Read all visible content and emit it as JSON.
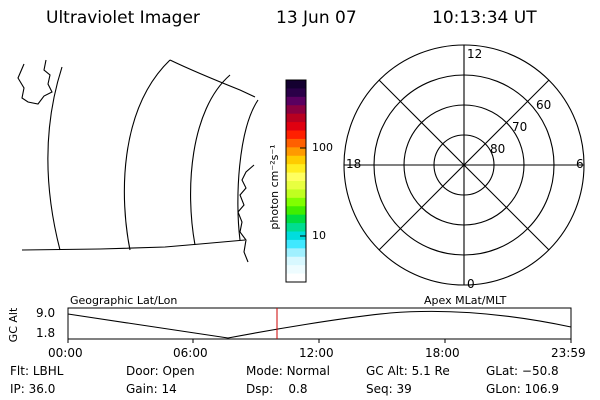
{
  "header": {
    "instrument": "Ultraviolet Imager",
    "date": "13 Jun 07",
    "time": "10:13:34 UT"
  },
  "colorbar": {
    "unit_label": "photon cm⁻²s⁻¹",
    "tick_100": "100",
    "tick_10": "10",
    "colors": [
      "#140030",
      "#2a0048",
      "#5a0060",
      "#8a0040",
      "#b80020",
      "#e00010",
      "#ff2000",
      "#ff6000",
      "#ff9a00",
      "#ffcc00",
      "#ffee20",
      "#ffff60",
      "#e8ff40",
      "#c0ff20",
      "#80ff00",
      "#40ee00",
      "#00dd40",
      "#00dd90",
      "#00dddd",
      "#40e8ff",
      "#a0f0ff",
      "#d8f8ff",
      "#eefcff",
      "#ffffff"
    ]
  },
  "polar": {
    "mlt_12": "12",
    "mlt_18": "18",
    "mlt_6": "6",
    "mlt_0": "0",
    "lat_60": "60",
    "lat_70": "70",
    "lat_80": "80"
  },
  "panel_labels": {
    "left": "Geographic Lat/Lon",
    "right": "Apex MLat/MLT"
  },
  "altitude_plot": {
    "ylabel": "GC Alt",
    "ymax": "9.0",
    "ymin": "1.8",
    "x_ticks": [
      "00:00",
      "06:00",
      "12:00",
      "18:00",
      "23:59"
    ],
    "marker_color": "#cc0000"
  },
  "status": {
    "row1": [
      {
        "key": "Flt:",
        "value": "LBHL"
      },
      {
        "key": "Door:",
        "value": "Open"
      },
      {
        "key": "Mode:",
        "value": "Normal"
      },
      {
        "key": "GC Alt:",
        "value": "5.1 Re"
      },
      {
        "key": "GLat:",
        "value": "−50.8"
      }
    ],
    "row2": [
      {
        "key": "IP:",
        "value": "36.0"
      },
      {
        "key": "Gain:",
        "value": "14"
      },
      {
        "key": "Dsp:",
        "value": "0.8"
      },
      {
        "key": "Seq:",
        "value": "39"
      },
      {
        "key": "GLon:",
        "value": "106.9"
      }
    ]
  }
}
